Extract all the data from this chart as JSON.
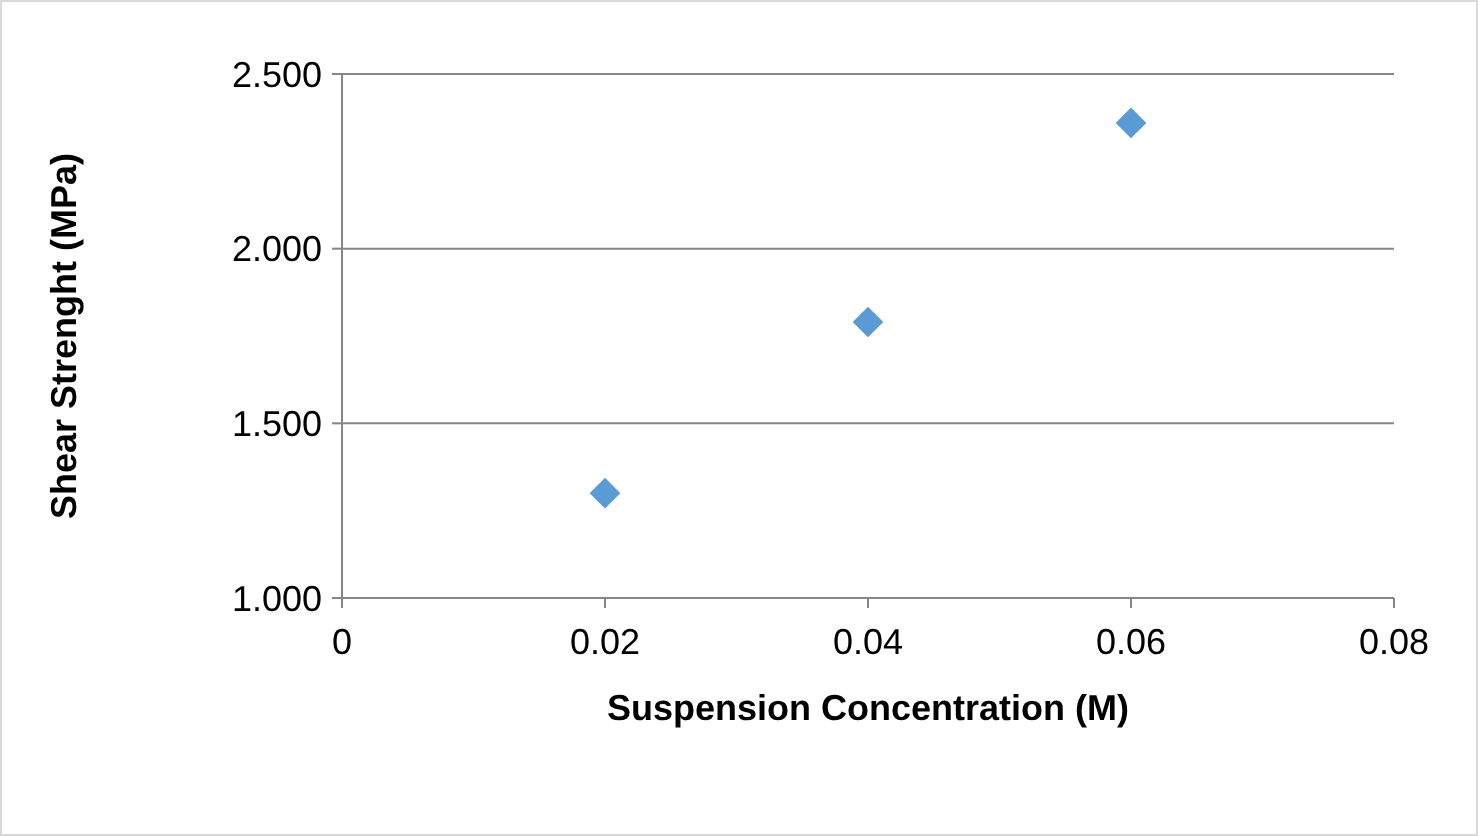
{
  "chart_data": {
    "type": "scatter",
    "xlabel": "Suspension Concentration (M)",
    "ylabel": "Shear Strenght (MPa)",
    "x": [
      0.02,
      0.04,
      0.06
    ],
    "series": [
      {
        "color": "#5b9bd5",
        "values": [
          1.3,
          1.79,
          2.36
        ]
      }
    ],
    "xlim": [
      0,
      0.08
    ],
    "xticks": [
      0,
      0.02,
      0.04,
      0.06,
      0.08
    ],
    "ylim": [
      1,
      2.5
    ],
    "yticks": [
      {
        "value": 1,
        "label": "1.000"
      },
      {
        "value": 1.5,
        "label": "1.500"
      },
      {
        "value": 2,
        "label": "2.000"
      },
      {
        "value": 2.5,
        "label": "2.500"
      }
    ],
    "grid": "y",
    "marker": "diamond"
  }
}
